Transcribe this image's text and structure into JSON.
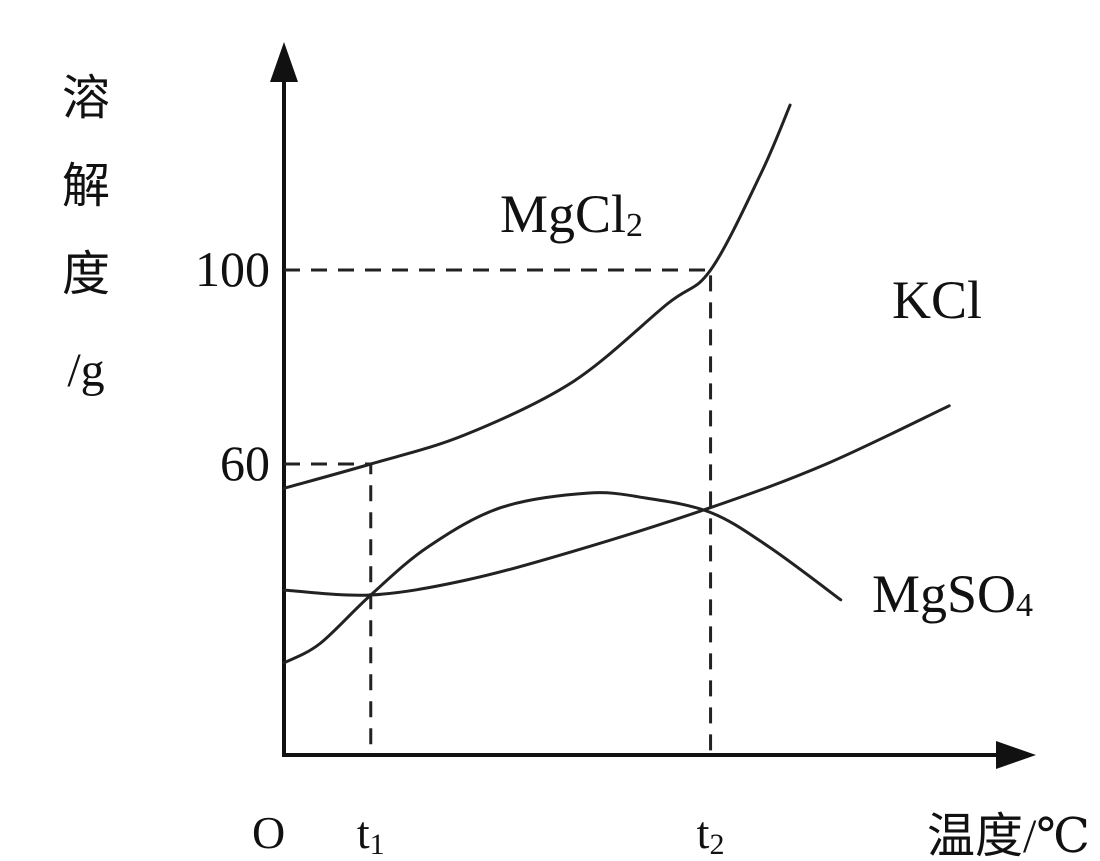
{
  "chart_data": {
    "type": "line",
    "title": "",
    "ylabel": "溶解度/g",
    "xlabel": "温度/℃",
    "origin_label": "O",
    "ylim": [
      0,
      140
    ],
    "xlim": [
      0,
      10
    ],
    "y_ticks": [
      {
        "value": 60,
        "label": "60"
      },
      {
        "value": 100,
        "label": "100"
      }
    ],
    "x_ticks": [
      {
        "value": 1.2,
        "label": "t1"
      },
      {
        "value": 5.9,
        "label": "t2"
      }
    ],
    "series": [
      {
        "name": "MgCl2",
        "x": [
          0,
          1.2,
          2.5,
          4.0,
          5.3,
          5.9,
          6.6,
          7.0
        ],
        "y": [
          55,
          60,
          66,
          77,
          93,
          100,
          120,
          134
        ]
      },
      {
        "name": "KCl",
        "x": [
          0,
          1.2,
          2.5,
          4.0,
          5.9,
          7.5,
          9.2
        ],
        "y": [
          34,
          33,
          36,
          42,
          51,
          60,
          72
        ]
      },
      {
        "name": "MgSO4",
        "x": [
          0,
          0.5,
          1.2,
          2.0,
          3.0,
          4.2,
          5.0,
          5.9,
          6.7,
          7.7
        ],
        "y": [
          19,
          23,
          33,
          43,
          51,
          54,
          53,
          50,
          43,
          32
        ]
      }
    ],
    "guides": [
      {
        "x": 1.2,
        "y": 60
      },
      {
        "x": 5.9,
        "y": 100
      }
    ],
    "series_labels": [
      {
        "series": "MgCl2",
        "base": "MgCl",
        "sub": "2"
      },
      {
        "series": "KCl",
        "base": "KCl",
        "sub": ""
      },
      {
        "series": "MgSO4",
        "base": "MgSO",
        "sub": "4"
      }
    ],
    "grid": false,
    "legend": "none"
  }
}
